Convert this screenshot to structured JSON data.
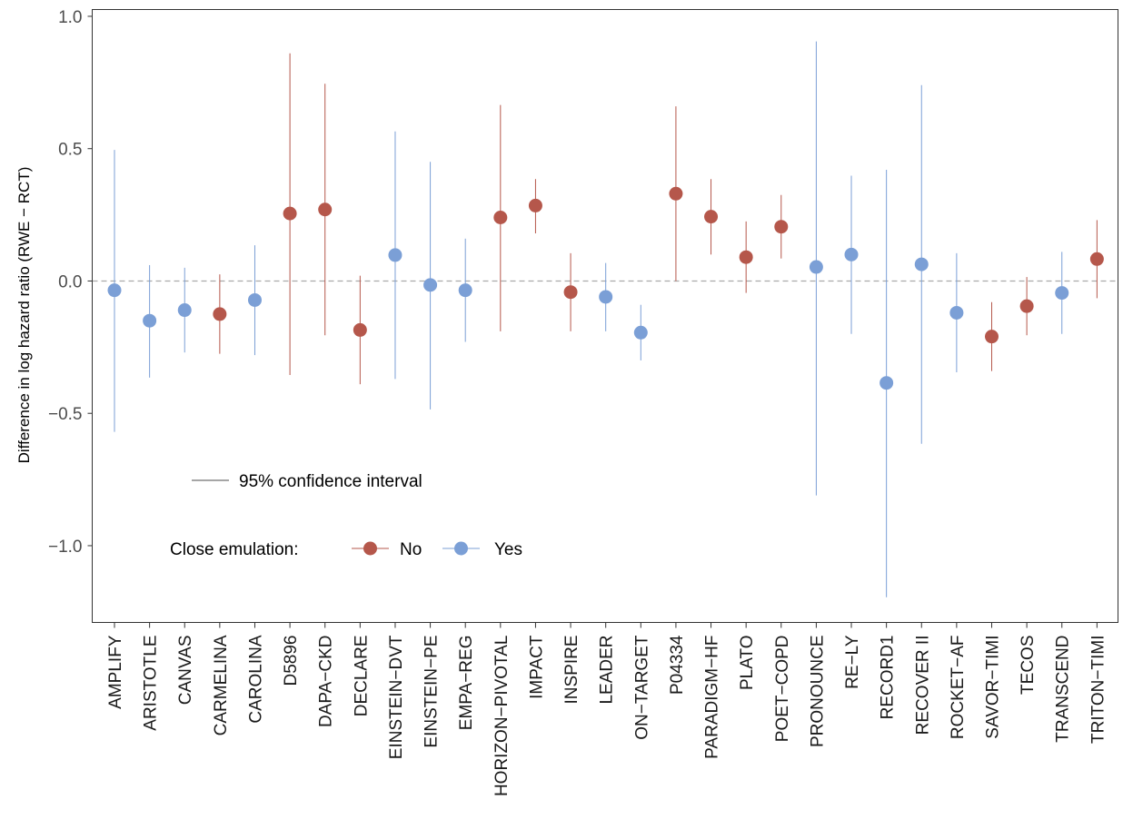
{
  "chart_data": {
    "type": "scatter",
    "subtype": "point-range",
    "title": "",
    "xlabel": "",
    "ylabel": "Difference in log hazard ratio (RWE − RCT)",
    "ylim": [
      -1.29,
      1.0
    ],
    "yticks": [
      1.0,
      0.5,
      0.0,
      -0.5,
      -1.0
    ],
    "ytick_labels": [
      "1.0",
      "0.5",
      "0.0",
      "−0.5",
      "−1.0"
    ],
    "reference_line": 0.0,
    "grid": false,
    "legend": {
      "interval_label": "95% confidence interval",
      "group_title": "Close emulation:",
      "groups": [
        {
          "name": "No",
          "color": "#b5574b"
        },
        {
          "name": "Yes",
          "color": "#7b9fd6"
        }
      ],
      "placement": "bottom-left"
    },
    "categories": [
      "AMPLIFY",
      "ARISTOTLE",
      "CANVAS",
      "CARMELINA",
      "CAROLINA",
      "D5896",
      "DAPA−CKD",
      "DECLARE",
      "EINSTEIN−DVT",
      "EINSTEIN−PE",
      "EMPA−REG",
      "HORIZON−PIVOTAL",
      "IMPACT",
      "INSPIRE",
      "LEADER",
      "ON−TARGET",
      "P04334",
      "PARADIGM−HF",
      "PLATO",
      "POET−COPD",
      "PRONOUNCE",
      "RE−LY",
      "RECORD1",
      "RECOVER II",
      "ROCKET−AF",
      "SAVOR−TIMI",
      "TECOS",
      "TRANSCEND",
      "TRITON−TIMI"
    ],
    "points": [
      {
        "trial": "AMPLIFY",
        "estimate": -0.035,
        "lower": -0.57,
        "upper": 0.495,
        "close": "Yes"
      },
      {
        "trial": "ARISTOTLE",
        "estimate": -0.15,
        "lower": -0.365,
        "upper": 0.06,
        "close": "Yes"
      },
      {
        "trial": "CANVAS",
        "estimate": -0.11,
        "lower": -0.27,
        "upper": 0.05,
        "close": "Yes"
      },
      {
        "trial": "CARMELINA",
        "estimate": -0.125,
        "lower": -0.275,
        "upper": 0.025,
        "close": "No"
      },
      {
        "trial": "CAROLINA",
        "estimate": -0.072,
        "lower": -0.28,
        "upper": 0.135,
        "close": "Yes"
      },
      {
        "trial": "D5896",
        "estimate": 0.255,
        "lower": -0.355,
        "upper": 0.86,
        "close": "No"
      },
      {
        "trial": "DAPA−CKD",
        "estimate": 0.27,
        "lower": -0.205,
        "upper": 0.745,
        "close": "No"
      },
      {
        "trial": "DECLARE",
        "estimate": -0.185,
        "lower": -0.39,
        "upper": 0.02,
        "close": "No"
      },
      {
        "trial": "EINSTEIN−DVT",
        "estimate": 0.098,
        "lower": -0.37,
        "upper": 0.565,
        "close": "Yes"
      },
      {
        "trial": "EINSTEIN−PE",
        "estimate": -0.015,
        "lower": -0.485,
        "upper": 0.45,
        "close": "Yes"
      },
      {
        "trial": "EMPA−REG",
        "estimate": -0.035,
        "lower": -0.23,
        "upper": 0.16,
        "close": "Yes"
      },
      {
        "trial": "HORIZON−PIVOTAL",
        "estimate": 0.24,
        "lower": -0.19,
        "upper": 0.665,
        "close": "No"
      },
      {
        "trial": "IMPACT",
        "estimate": 0.285,
        "lower": 0.18,
        "upper": 0.385,
        "close": "No"
      },
      {
        "trial": "INSPIRE",
        "estimate": -0.042,
        "lower": -0.19,
        "upper": 0.105,
        "close": "No"
      },
      {
        "trial": "LEADER",
        "estimate": -0.06,
        "lower": -0.19,
        "upper": 0.068,
        "close": "Yes"
      },
      {
        "trial": "ON−TARGET",
        "estimate": -0.195,
        "lower": -0.3,
        "upper": -0.09,
        "close": "Yes"
      },
      {
        "trial": "P04334",
        "estimate": 0.33,
        "lower": 0.0,
        "upper": 0.66,
        "close": "No"
      },
      {
        "trial": "PARADIGM−HF",
        "estimate": 0.243,
        "lower": 0.1,
        "upper": 0.385,
        "close": "No"
      },
      {
        "trial": "PLATO",
        "estimate": 0.09,
        "lower": -0.045,
        "upper": 0.225,
        "close": "No"
      },
      {
        "trial": "POET−COPD",
        "estimate": 0.205,
        "lower": 0.085,
        "upper": 0.325,
        "close": "No"
      },
      {
        "trial": "PRONOUNCE",
        "estimate": 0.053,
        "lower": -0.81,
        "upper": 0.905,
        "close": "Yes"
      },
      {
        "trial": "RE−LY",
        "estimate": 0.1,
        "lower": -0.2,
        "upper": 0.398,
        "close": "Yes"
      },
      {
        "trial": "RECORD1",
        "estimate": -0.385,
        "lower": -1.195,
        "upper": 0.42,
        "close": "Yes"
      },
      {
        "trial": "RECOVER II",
        "estimate": 0.063,
        "lower": -0.615,
        "upper": 0.74,
        "close": "Yes"
      },
      {
        "trial": "ROCKET−AF",
        "estimate": -0.12,
        "lower": -0.345,
        "upper": 0.105,
        "close": "Yes"
      },
      {
        "trial": "SAVOR−TIMI",
        "estimate": -0.21,
        "lower": -0.34,
        "upper": -0.08,
        "close": "No"
      },
      {
        "trial": "TECOS",
        "estimate": -0.095,
        "lower": -0.205,
        "upper": 0.015,
        "close": "No"
      },
      {
        "trial": "TRANSCEND",
        "estimate": -0.045,
        "lower": -0.2,
        "upper": 0.11,
        "close": "Yes"
      },
      {
        "trial": "TRITON−TIMI",
        "estimate": 0.083,
        "lower": -0.065,
        "upper": 0.23,
        "close": "No"
      }
    ]
  }
}
